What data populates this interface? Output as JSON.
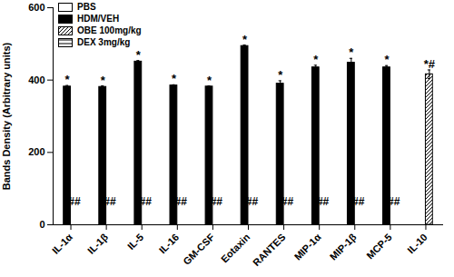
{
  "chart_data": {
    "type": "bar",
    "y_label": "Bands Density (Arbitrary units)",
    "categories": [
      "IL-1α",
      "IL-1β",
      "IL-5",
      "IL-16",
      "GM-CSF",
      "Eotaxin",
      "RANTES",
      "MIP-1α",
      "MIP-1β",
      "MCP-5",
      "IL-10"
    ],
    "series": [
      {
        "name": "PBS",
        "color": "#ffffff",
        "values": [
          null,
          null,
          null,
          null,
          null,
          null,
          null,
          null,
          null,
          null,
          null
        ]
      },
      {
        "name": "HDM/VEH",
        "color": "#000000",
        "values": [
          382,
          381,
          451,
          385,
          382,
          494,
          390,
          435,
          448,
          435,
          null
        ],
        "errors": [
          3,
          3,
          3,
          2,
          2,
          3,
          8,
          6,
          12,
          5,
          null
        ]
      },
      {
        "name": "OBE 100mg/kg",
        "color": "#ffffff",
        "values": [
          null,
          null,
          null,
          null,
          null,
          null,
          null,
          null,
          null,
          null,
          416
        ],
        "errors": [
          null,
          null,
          null,
          null,
          null,
          null,
          null,
          null,
          null,
          null,
          12
        ]
      },
      {
        "name": "DEX 3mg/kg",
        "color": "#ffffff",
        "values": [
          null,
          null,
          null,
          null,
          null,
          null,
          null,
          null,
          null,
          null,
          null
        ]
      }
    ],
    "annotations": [
      {
        "category": "IL-1α",
        "series": "HDM/VEH",
        "text": "*"
      },
      {
        "category": "IL-1β",
        "series": "HDM/VEH",
        "text": "*"
      },
      {
        "category": "IL-5",
        "series": "HDM/VEH",
        "text": "*"
      },
      {
        "category": "IL-16",
        "series": "HDM/VEH",
        "text": "*"
      },
      {
        "category": "GM-CSF",
        "series": "HDM/VEH",
        "text": "*"
      },
      {
        "category": "Eotaxin",
        "series": "HDM/VEH",
        "text": "*"
      },
      {
        "category": "RANTES",
        "series": "HDM/VEH",
        "text": "*"
      },
      {
        "category": "MIP-1α",
        "series": "HDM/VEH",
        "text": "*"
      },
      {
        "category": "MIP-1β",
        "series": "HDM/VEH",
        "text": "*"
      },
      {
        "category": "MCP-5",
        "series": "HDM/VEH",
        "text": "*"
      },
      {
        "category": "IL-1α",
        "series": "OBE 100mg/kg",
        "text": "##"
      },
      {
        "category": "IL-1β",
        "series": "OBE 100mg/kg",
        "text": "##"
      },
      {
        "category": "IL-5",
        "series": "OBE 100mg/kg",
        "text": "##"
      },
      {
        "category": "IL-16",
        "series": "OBE 100mg/kg",
        "text": "##"
      },
      {
        "category": "GM-CSF",
        "series": "OBE 100mg/kg",
        "text": "##"
      },
      {
        "category": "Eotaxin",
        "series": "OBE 100mg/kg",
        "text": "##"
      },
      {
        "category": "RANTES",
        "series": "OBE 100mg/kg",
        "text": "##"
      },
      {
        "category": "MIP-1α",
        "series": "OBE 100mg/kg",
        "text": "##"
      },
      {
        "category": "MIP-1β",
        "series": "OBE 100mg/kg",
        "text": "##"
      },
      {
        "category": "MCP-5",
        "series": "OBE 100mg/kg",
        "text": "##"
      },
      {
        "category": "IL-10",
        "series": "OBE 100mg/kg",
        "text": "*#"
      }
    ],
    "ylim": [
      0,
      600
    ],
    "yticks": [
      0,
      200,
      400,
      600
    ],
    "grid": false,
    "legend": "top-left"
  }
}
